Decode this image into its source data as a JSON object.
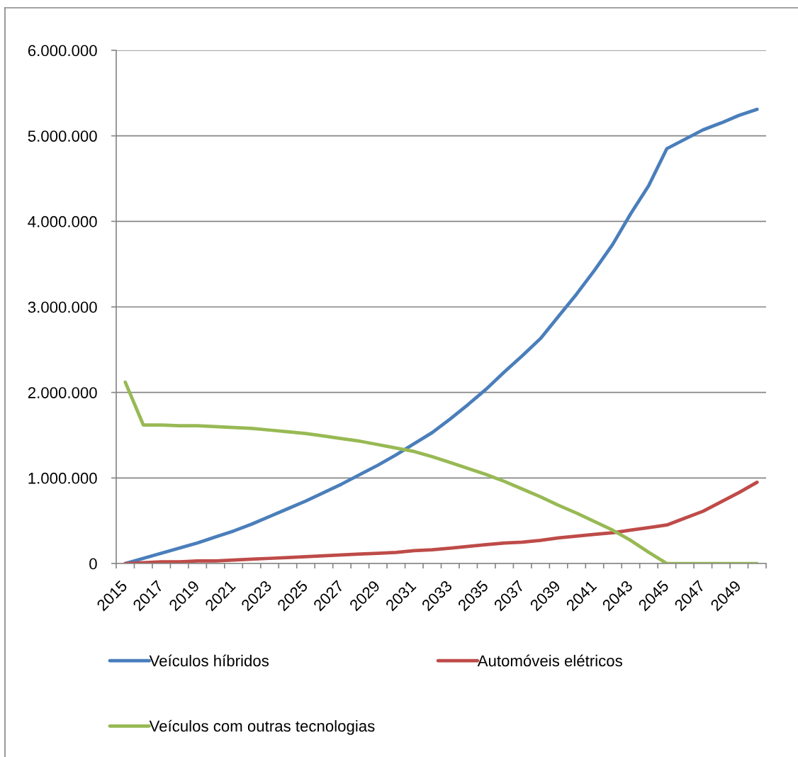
{
  "chart_data": {
    "type": "line",
    "categories": [
      "2015",
      null,
      "2017",
      null,
      "2019",
      null,
      "2021",
      null,
      "2023",
      null,
      "2025",
      null,
      "2027",
      null,
      "2029",
      null,
      "2031",
      null,
      "2033",
      null,
      "2035",
      null,
      "2037",
      null,
      "2039",
      null,
      "2041",
      null,
      "2043",
      null,
      "2045",
      null,
      "2047",
      null,
      "2049",
      null
    ],
    "series": [
      {
        "name": "Veículos híbridos",
        "color": "#4a7ebb",
        "values": [
          0,
          60000,
          120000,
          180000,
          240000,
          310000,
          380000,
          460000,
          550000,
          640000,
          730000,
          830000,
          930000,
          1040000,
          1150000,
          1270000,
          1400000,
          1530000,
          1690000,
          1860000,
          2040000,
          2240000,
          2430000,
          2630000,
          2890000,
          3150000,
          3430000,
          3730000,
          4090000,
          4420000,
          4850000,
          4960000,
          5070000,
          5150000,
          5240000,
          5310000
        ]
      },
      {
        "name": "Automóveis elétricos",
        "color": "#be4b48",
        "values": [
          0,
          10000,
          20000,
          20000,
          30000,
          30000,
          40000,
          50000,
          60000,
          70000,
          80000,
          90000,
          100000,
          110000,
          120000,
          130000,
          150000,
          160000,
          180000,
          200000,
          220000,
          240000,
          250000,
          270000,
          300000,
          320000,
          340000,
          360000,
          390000,
          420000,
          450000,
          530000,
          610000,
          720000,
          830000,
          950000
        ]
      },
      {
        "name": "Veículos com outras tecnologias",
        "color": "#98b954",
        "values": [
          2120000,
          1620000,
          1620000,
          1610000,
          1610000,
          1600000,
          1590000,
          1580000,
          1560000,
          1540000,
          1520000,
          1490000,
          1460000,
          1430000,
          1390000,
          1350000,
          1310000,
          1250000,
          1180000,
          1110000,
          1040000,
          960000,
          870000,
          780000,
          680000,
          590000,
          490000,
          390000,
          270000,
          130000,
          0,
          0,
          0,
          0,
          0,
          0
        ]
      }
    ],
    "ylim": [
      0,
      6000000
    ],
    "yticks": [
      0,
      {
        "value": 1000000,
        "label": "1.000.000"
      },
      {
        "value": 2000000,
        "label": "2.000.000"
      },
      {
        "value": 3000000,
        "label": "3.000.000"
      },
      {
        "value": 4000000,
        "label": "4.000.000"
      },
      {
        "value": 5000000,
        "label": "5.000.000"
      },
      {
        "value": 6000000,
        "label": "6.000.000"
      }
    ],
    "grid": "y",
    "legend": "bottom",
    "line_style": "solid"
  }
}
